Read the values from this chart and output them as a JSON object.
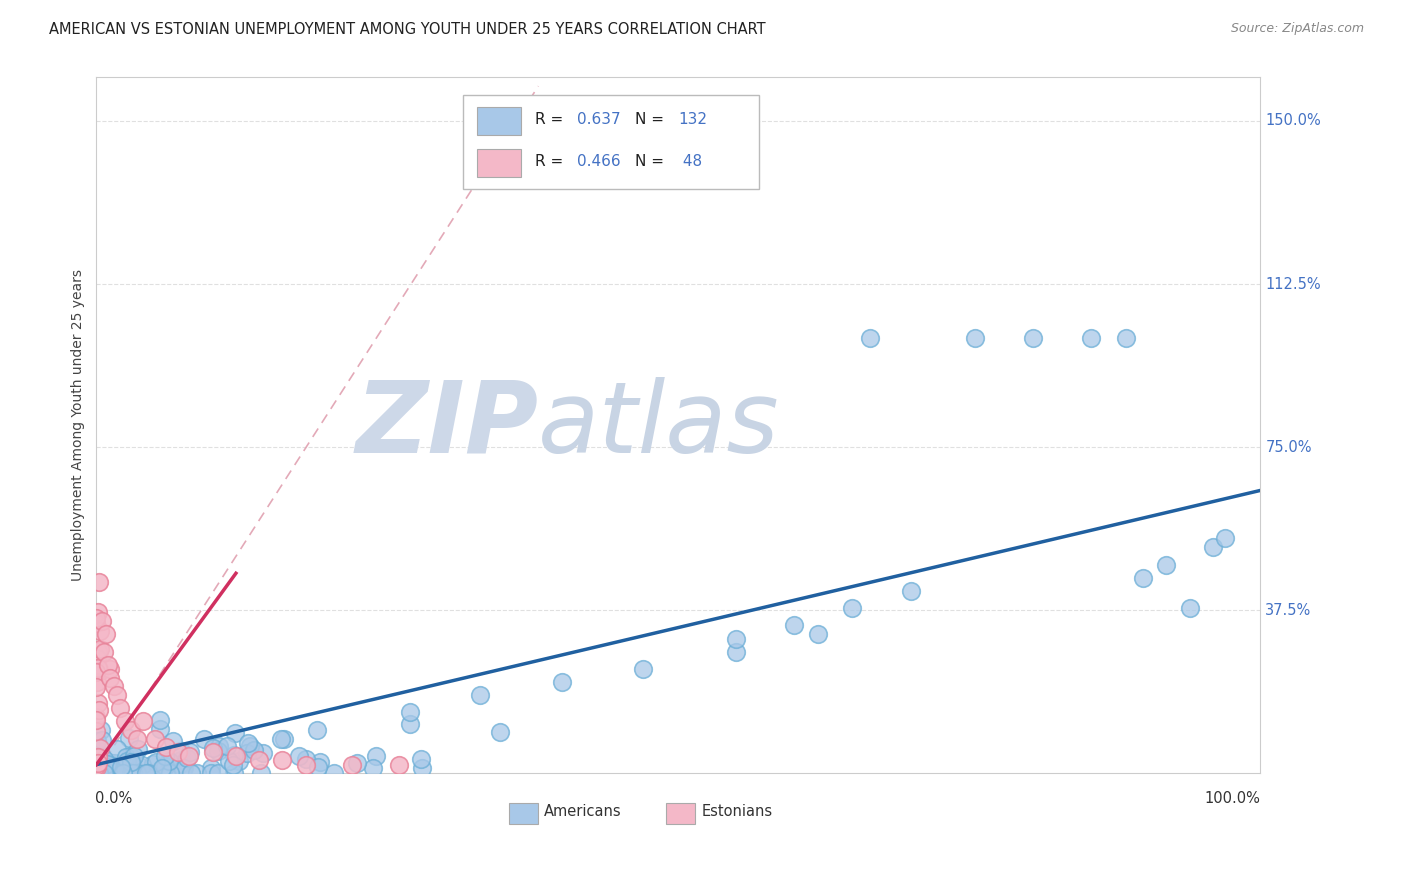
{
  "title": "AMERICAN VS ESTONIAN UNEMPLOYMENT AMONG YOUTH UNDER 25 YEARS CORRELATION CHART",
  "source": "Source: ZipAtlas.com",
  "ylabel": "Unemployment Among Youth under 25 years",
  "yticks_right": [
    "150.0%",
    "112.5%",
    "75.0%",
    "37.5%"
  ],
  "yticks_right_vals": [
    1.5,
    1.125,
    0.75,
    0.375
  ],
  "americans_color": "#a8c8e8",
  "americans_edge": "#6baed6",
  "estonians_color": "#f4b8c8",
  "estonians_edge": "#e8849a",
  "regression_american_color": "#2060a0",
  "regression_estonian_color": "#d03060",
  "diagonal_color": "#e0a0b0",
  "watermark_zip_color": "#c8d8ec",
  "watermark_atlas_color": "#c0cce0",
  "xlim": [
    0.0,
    1.0
  ],
  "ylim": [
    0.0,
    1.6
  ],
  "bg_color": "#ffffff",
  "grid_color": "#e0e0e0",
  "americans_R": 0.637,
  "americans_N": 132,
  "estonians_R": 0.466,
  "estonians_N": 48
}
